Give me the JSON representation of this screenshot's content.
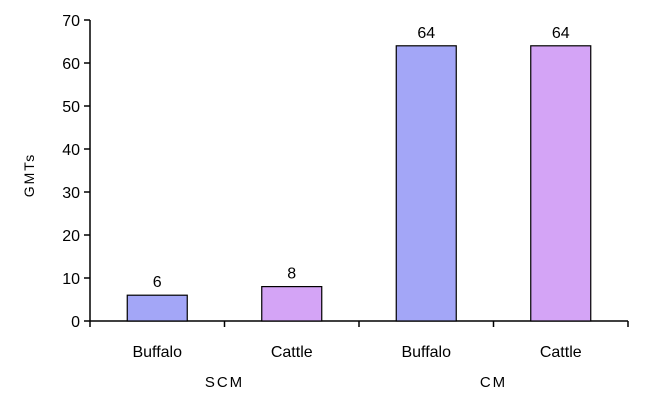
{
  "chart_data": {
    "type": "bar",
    "ylabel": "GMTs",
    "xlabel": "",
    "ylim": [
      0,
      70
    ],
    "yticks": [
      0,
      10,
      20,
      30,
      40,
      50,
      60,
      70
    ],
    "grid": false,
    "legend": "none",
    "categories": [
      "Buffalo",
      "Cattle",
      "Buffalo",
      "Cattle"
    ],
    "groups": [
      {
        "label": "SCM",
        "categories": [
          0,
          1
        ]
      },
      {
        "label": "CM",
        "categories": [
          2,
          3
        ]
      }
    ],
    "values": [
      6,
      8,
      64,
      64
    ],
    "data_labels": [
      "6",
      "8",
      "64",
      "64"
    ],
    "colors": [
      "#a3a6f7",
      "#d4a4f6",
      "#a3a6f7",
      "#d4a4f6"
    ]
  }
}
